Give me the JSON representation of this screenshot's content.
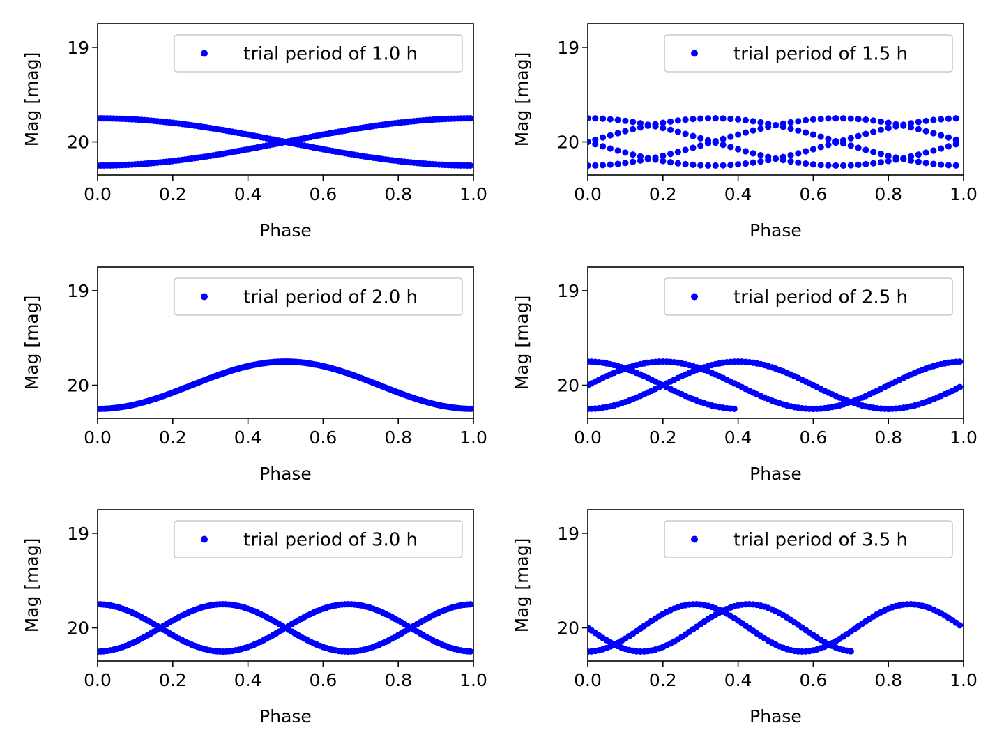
{
  "figure": {
    "background": "#ffffff",
    "marker_color": "#0000ff"
  },
  "chart_data": [
    {
      "type": "scatter",
      "panel": "trial period of 1.0 h",
      "xlabel": "Phase",
      "ylabel": "Mag [mag]",
      "xlim": [
        0.0,
        1.0
      ],
      "ylim": [
        20.35,
        18.75
      ],
      "y_inverted": true,
      "xticks": [
        "0.0",
        "0.2",
        "0.4",
        "0.6",
        "0.8",
        "1.0"
      ],
      "yticks": [
        "19",
        "20"
      ],
      "legend": "trial period of 1.0 h",
      "legend_placement": "upper right",
      "grid": false,
      "model": {
        "kind": "sinusoid",
        "mean_mag": 20.0,
        "amplitude": 0.25,
        "light_curve_period_h": 2.0,
        "trial_period_h": 1.0,
        "phase_zero_mag": 20.25,
        "points_per_cycle": 120,
        "cycles": 2
      }
    },
    {
      "type": "scatter",
      "panel": "trial period of 1.5 h",
      "xlabel": "Phase",
      "ylabel": "Mag [mag]",
      "xlim": [
        0.0,
        1.0
      ],
      "ylim": [
        20.35,
        18.75
      ],
      "y_inverted": true,
      "xticks": [
        "0.0",
        "0.2",
        "0.4",
        "0.6",
        "0.8",
        "1.0"
      ],
      "yticks": [
        "19",
        "20"
      ],
      "legend": "trial period of 1.5 h",
      "legend_placement": "upper right",
      "grid": false,
      "model": {
        "kind": "sinusoid",
        "mean_mag": 20.0,
        "amplitude": 0.25,
        "light_curve_period_h": 2.0,
        "trial_period_h": 1.5,
        "phase_zero_mag": 20.25,
        "points_per_cycle": 50,
        "cycles": 4
      }
    },
    {
      "type": "scatter",
      "panel": "trial period of 2.0 h",
      "xlabel": "Phase",
      "ylabel": "Mag [mag]",
      "xlim": [
        0.0,
        1.0
      ],
      "ylim": [
        20.35,
        18.75
      ],
      "y_inverted": true,
      "xticks": [
        "0.0",
        "0.2",
        "0.4",
        "0.6",
        "0.8",
        "1.0"
      ],
      "yticks": [
        "19",
        "20"
      ],
      "legend": "trial period of 2.0 h",
      "legend_placement": "upper right",
      "grid": false,
      "model": {
        "kind": "sinusoid",
        "mean_mag": 20.0,
        "amplitude": 0.25,
        "light_curve_period_h": 2.0,
        "trial_period_h": 2.0,
        "phase_zero_mag": 20.25,
        "points_per_cycle": 160,
        "cycles": 1
      }
    },
    {
      "type": "scatter",
      "panel": "trial period of 2.5 h",
      "xlabel": "Phase",
      "ylabel": "Mag [mag]",
      "xlim": [
        0.0,
        1.0
      ],
      "ylim": [
        20.35,
        18.75
      ],
      "y_inverted": true,
      "xticks": [
        "0.0",
        "0.2",
        "0.4",
        "0.6",
        "0.8",
        "1.0"
      ],
      "yticks": [
        "19",
        "20"
      ],
      "legend": "trial period of 2.5 h",
      "legend_placement": "upper right",
      "grid": false,
      "model": {
        "kind": "sinusoid",
        "mean_mag": 20.0,
        "amplitude": 0.25,
        "light_curve_period_h": 2.0,
        "trial_period_h": 2.5,
        "phase_zero_mag": 20.25,
        "points_per_cycle": 100,
        "cycles": 2.4
      }
    },
    {
      "type": "scatter",
      "panel": "trial period of 3.0 h",
      "xlabel": "Phase",
      "ylabel": "Mag [mag]",
      "xlim": [
        0.0,
        1.0
      ],
      "ylim": [
        20.35,
        18.75
      ],
      "y_inverted": true,
      "xticks": [
        "0.0",
        "0.2",
        "0.4",
        "0.6",
        "0.8",
        "1.0"
      ],
      "yticks": [
        "19",
        "20"
      ],
      "legend": "trial period of 3.0 h",
      "legend_placement": "upper right",
      "grid": false,
      "model": {
        "kind": "sinusoid",
        "mean_mag": 20.0,
        "amplitude": 0.25,
        "light_curve_period_h": 2.0,
        "trial_period_h": 3.0,
        "phase_zero_mag": 20.25,
        "points_per_cycle": 120,
        "cycles": 2
      }
    },
    {
      "type": "scatter",
      "panel": "trial period of 3.5 h",
      "xlabel": "Phase",
      "ylabel": "Mag [mag]",
      "xlim": [
        0.0,
        1.0
      ],
      "ylim": [
        20.35,
        18.75
      ],
      "y_inverted": true,
      "xticks": [
        "0.0",
        "0.2",
        "0.4",
        "0.6",
        "0.8",
        "1.0"
      ],
      "yticks": [
        "19",
        "20"
      ],
      "legend": "trial period of 3.5 h",
      "legend_placement": "upper right",
      "grid": false,
      "model": {
        "kind": "sinusoid",
        "mean_mag": 20.0,
        "amplitude": 0.25,
        "light_curve_period_h": 2.0,
        "trial_period_h": 3.5,
        "phase_zero_mag": 20.25,
        "points_per_cycle": 100,
        "cycles": 1.714
      }
    }
  ]
}
